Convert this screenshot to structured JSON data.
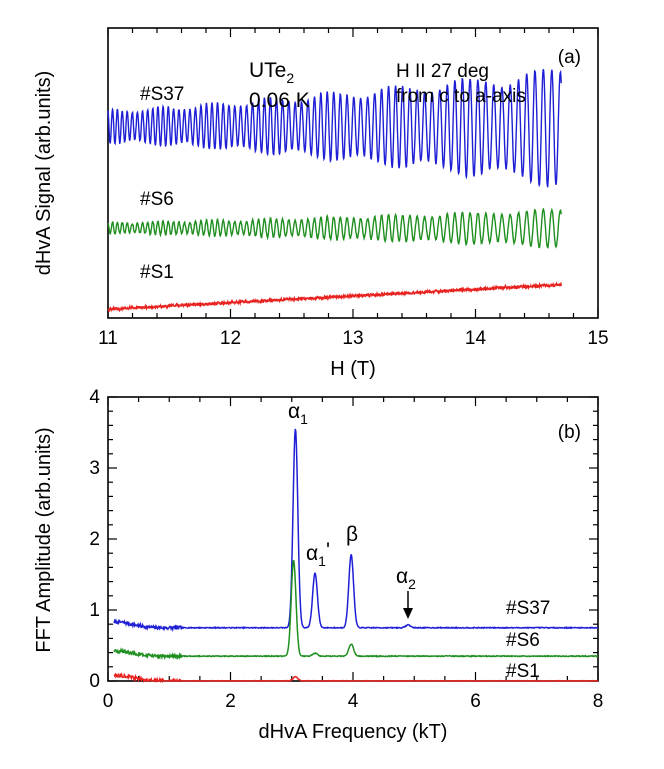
{
  "chart_data": [
    {
      "type": "line",
      "panel_label": "(a)",
      "xlabel": "H (T)",
      "ylabel": "dHvA Signal (arb.units)",
      "xlim": [
        11,
        15
      ],
      "xticks": [
        "11",
        "12",
        "13",
        "14",
        "15"
      ],
      "ylim": [
        0,
        1
      ],
      "yticks_shown": false,
      "annotations": {
        "compound_base": "UTe",
        "compound_sub": "2",
        "temperature": "0.06 K",
        "field_line1": "H II 27 deg",
        "field_line2": "from c to a-axis"
      },
      "series": [
        {
          "name": "#S37",
          "color": "#1f1fd6",
          "x_start": 11.0,
          "x_end": 14.7,
          "baseline": 0.66,
          "amp_start": 0.065,
          "amp_end": 0.23,
          "freq_kT": 3.06
        },
        {
          "name": "#S6",
          "color": "#1f8f1f",
          "x_start": 11.0,
          "x_end": 14.7,
          "baseline": 0.31,
          "amp_start": 0.022,
          "amp_end": 0.075,
          "freq_kT": 3.06
        },
        {
          "name": "#S1",
          "color": "#e8221f",
          "x_start": 11.0,
          "x_end": 14.7,
          "start_value": 0.03,
          "end_value": 0.115
        }
      ]
    },
    {
      "type": "line",
      "panel_label": "(b)",
      "xlabel": "dHvA Frequency (kT)",
      "ylabel": "FFT Amplitude (arb.units)",
      "xlim": [
        0,
        8
      ],
      "ylim": [
        0,
        4
      ],
      "xticks": [
        "0",
        "2",
        "4",
        "6",
        "8"
      ],
      "yticks": [
        "0",
        "1",
        "2",
        "3",
        "4"
      ],
      "peak_labels": {
        "alpha1": "α",
        "alpha1_sub": "1",
        "alpha1p": "α",
        "alpha1p_sub": "1",
        "alpha1p_prime": "'",
        "beta": "β",
        "alpha2": "α",
        "alpha2_sub": "2"
      },
      "series": [
        {
          "name": "#S37",
          "color": "#1f1fd6",
          "baseline": 0.75,
          "peaks": [
            {
              "x": 0.15,
              "y": 0.83
            },
            {
              "x": 3.06,
              "y": 3.55
            },
            {
              "x": 3.38,
              "y": 1.52
            },
            {
              "x": 3.97,
              "y": 1.78
            },
            {
              "x": 4.9,
              "y": 0.79
            }
          ]
        },
        {
          "name": "#S6",
          "color": "#1f8f1f",
          "baseline": 0.35,
          "peaks": [
            {
              "x": 0.15,
              "y": 0.42
            },
            {
              "x": 3.03,
              "y": 1.7
            },
            {
              "x": 3.38,
              "y": 0.39
            },
            {
              "x": 3.97,
              "y": 0.52
            }
          ]
        },
        {
          "name": "#S1",
          "color": "#e8221f",
          "baseline": 0.0,
          "peaks": [
            {
              "x": 0.15,
              "y": 0.08
            },
            {
              "x": 3.06,
              "y": 0.06
            }
          ]
        }
      ]
    }
  ]
}
